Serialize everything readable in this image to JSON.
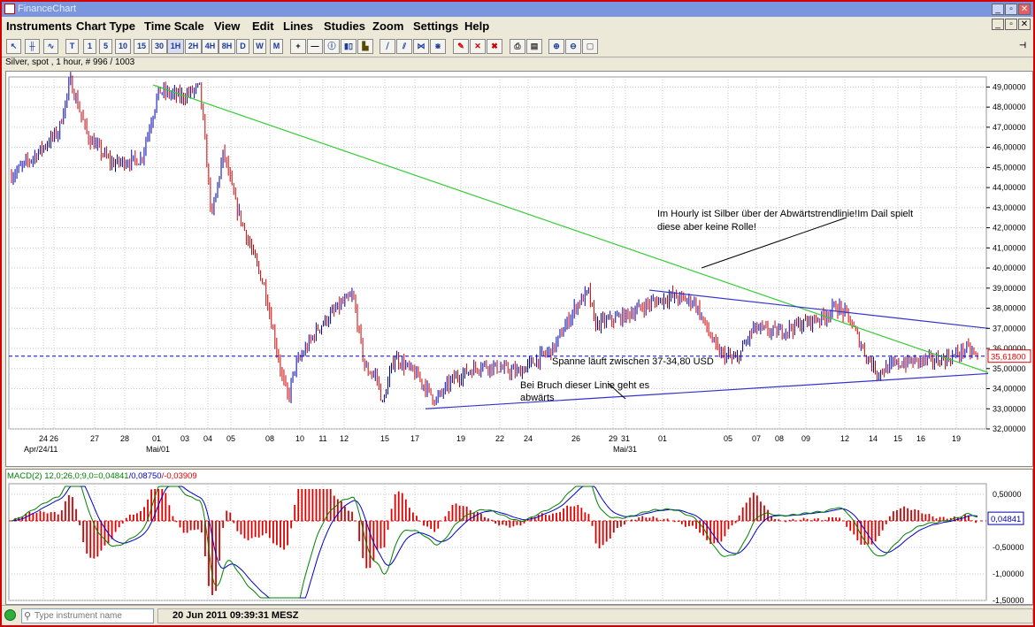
{
  "window": {
    "title": "FinanceChart",
    "min": "_",
    "restore": "▫",
    "close": "✕",
    "sub_min": "_",
    "sub_restore": "▫",
    "sub_close": "✕"
  },
  "menu": [
    "Instruments",
    "Chart Type",
    "Time Scale",
    "View",
    "Edit",
    "Lines",
    "Studies",
    "Zoom",
    "Settings",
    "Help"
  ],
  "toolbar": {
    "timeframes": [
      "T",
      "1",
      "5",
      "10",
      "15",
      "30",
      "1H",
      "2H",
      "4H",
      "8H",
      "D",
      "W",
      "M"
    ],
    "tools": [
      "crosshair",
      "line",
      "info-i",
      "bar-chart",
      "hash-grid",
      "cross-draw",
      "draw-1",
      "draw-2",
      "draw-3",
      "draw-4",
      "pencil-icon",
      "delete-x",
      "delete-all",
      "print-icon",
      "print-preview",
      "zoom-in",
      "zoom-out",
      "zoom-reset"
    ],
    "pin": "⊣"
  },
  "chart_info": "Silver, spot , 1 hour, # 996 / 1003",
  "chart_data": [
    {
      "type": "candlestick",
      "instrument": "Silver, spot",
      "timeframe": "1 hour",
      "ylim": [
        32,
        49.5
      ],
      "y_ticks": [
        "49,00000",
        "48,00000",
        "47,00000",
        "46,00000",
        "45,00000",
        "44,00000",
        "43,00000",
        "42,00000",
        "41,00000",
        "40,00000",
        "39,00000",
        "38,00000",
        "37,00000",
        "36,00000",
        "35,00000",
        "34,00000",
        "33,00000",
        "32,00000"
      ],
      "x_ticks": [
        "24",
        "26",
        "27",
        "28",
        "01",
        "03",
        "04",
        "05",
        "08",
        "10",
        "11",
        "12",
        "15",
        "17",
        "19",
        "22",
        "24",
        "26",
        "29",
        "31",
        "01",
        "05",
        "07",
        "08",
        "09",
        "12",
        "14",
        "15",
        "16",
        "19"
      ],
      "x_major": [
        "Apr/24/11",
        "Mai/01",
        "Mai/31"
      ],
      "approx_path": [
        [
          0,
          44.6
        ],
        [
          4,
          45.6
        ],
        [
          8,
          46.8
        ],
        [
          10,
          49.3
        ],
        [
          13,
          46.5
        ],
        [
          17,
          45.2
        ],
        [
          22,
          45.4
        ],
        [
          25,
          48.8
        ],
        [
          29,
          48.5
        ],
        [
          32,
          49.0
        ],
        [
          34,
          42.5
        ],
        [
          36,
          45.8
        ],
        [
          38,
          43.2
        ],
        [
          40,
          41.5
        ],
        [
          43,
          39.0
        ],
        [
          46,
          34.5
        ],
        [
          47,
          33.5
        ],
        [
          48,
          35.0
        ],
        [
          52,
          37.0
        ],
        [
          56,
          38.2
        ],
        [
          58,
          38.6
        ],
        [
          60,
          35.0
        ],
        [
          62,
          34.6
        ],
        [
          63,
          33.2
        ],
        [
          65,
          35.6
        ],
        [
          69,
          34.6
        ],
        [
          72,
          33.4
        ],
        [
          75,
          34.5
        ],
        [
          80,
          35.2
        ],
        [
          86,
          34.8
        ],
        [
          92,
          36.0
        ],
        [
          96,
          38.2
        ],
        [
          98,
          38.8
        ],
        [
          99,
          37.2
        ],
        [
          104,
          37.6
        ],
        [
          108,
          38.2
        ],
        [
          112,
          38.6
        ],
        [
          116,
          38.3
        ],
        [
          118,
          37.0
        ],
        [
          120,
          35.8
        ],
        [
          123,
          35.4
        ],
        [
          126,
          37.0
        ],
        [
          130,
          36.8
        ],
        [
          134,
          37.2
        ],
        [
          138,
          37.6
        ],
        [
          140,
          38.1
        ],
        [
          142,
          37.6
        ],
        [
          145,
          35.7
        ],
        [
          147,
          34.8
        ],
        [
          150,
          35.2
        ],
        [
          154,
          35.4
        ],
        [
          157,
          35.4
        ],
        [
          160,
          35.6
        ],
        [
          162,
          36.0
        ],
        [
          164,
          35.6
        ]
      ],
      "current_price": "35,61800",
      "annotations": [
        "Im Hourly ist Silber über der Abwärtstrendlinie!Im Dail spielt diese aber keine Rolle!",
        "Spanne läuft zwischen 37-34,80 USD",
        "Bei Bruch dieser Linie geht es abwärts"
      ]
    },
    {
      "type": "macd",
      "label": "MACD(2) 12,0;26,0;9,0=0,04841/0,08750/-0,03909",
      "label_parts": [
        "MACD(2) 12,0;26,0;9,0=0,04841",
        "/0,08750",
        "/-0,03909"
      ],
      "ylim": [
        -1.5,
        0.7
      ],
      "y_ticks": [
        "0,50000",
        "-0,50000",
        "-1,00000",
        "-1,50000"
      ],
      "current_value": "0,04841",
      "colors": {
        "macd": "#008000",
        "signal": "#0000cc",
        "histogram": "#dd0000"
      }
    }
  ],
  "colors": {
    "candles_up": "#0000aa",
    "candles_down": "#cc0000",
    "downtrend": "#33cc33",
    "channel": "#3333cc",
    "price_line": "#0000cc"
  },
  "status": {
    "search_placeholder": "Type instrument name",
    "datetime": "20 Jun 2011 09:39:31 MESZ"
  }
}
